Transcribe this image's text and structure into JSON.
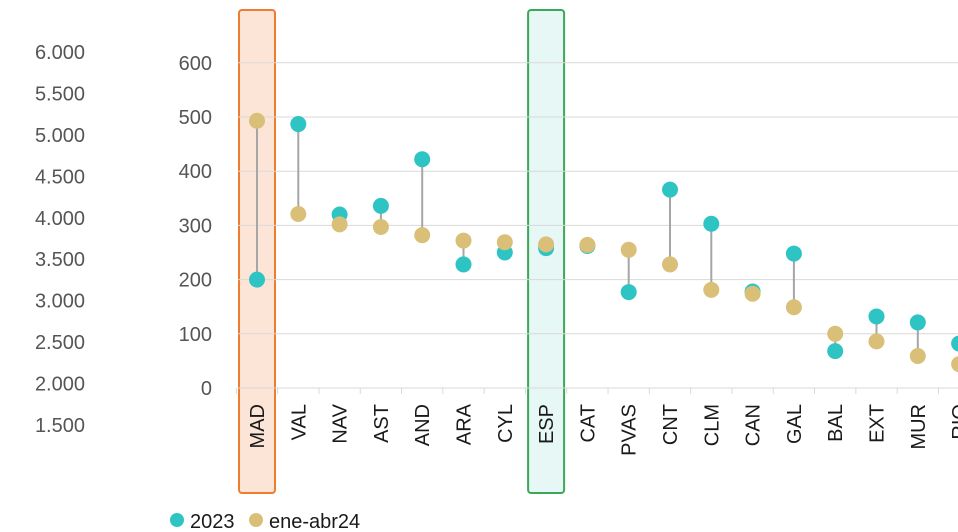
{
  "chart_data": {
    "type": "dot-plot",
    "categories": [
      "MAD",
      "VAL",
      "NAV",
      "AST",
      "AND",
      "ARA",
      "CYL",
      "ESP",
      "CAT",
      "PVAS",
      "CNT",
      "CLM",
      "CAN",
      "GAL",
      "BAL",
      "EXT",
      "MUR",
      "RIO"
    ],
    "series": [
      {
        "name": "2023",
        "color": "#2ec4c4",
        "values": [
          200,
          487,
          320,
          336,
          422,
          228,
          250,
          258,
          262,
          177,
          366,
          303,
          178,
          248,
          68,
          132,
          121,
          82
        ]
      },
      {
        "name": "ene-abr24",
        "color": "#d9bf77",
        "values": [
          493,
          321,
          302,
          297,
          282,
          272,
          269,
          265,
          264,
          255,
          228,
          181,
          174,
          149,
          100,
          86,
          59,
          44
        ]
      }
    ],
    "ylim": [
      0,
      680
    ],
    "yticks": [
      0,
      100,
      200,
      300,
      400,
      500,
      600
    ],
    "secondary_yticks": [
      "1.500",
      "2.000",
      "2.500",
      "3.000",
      "3.500",
      "4.000",
      "4.500",
      "5.000",
      "5.500",
      "6.000"
    ],
    "highlights": [
      {
        "category": "MAD",
        "fill": "#fce4d6",
        "stroke": "#ed7d31"
      },
      {
        "category": "ESP",
        "fill": "#e6f7f6",
        "stroke": "#3aa856"
      }
    ],
    "grid": true,
    "legend": "bottom-left",
    "connector_color": "#a6a6a6"
  }
}
